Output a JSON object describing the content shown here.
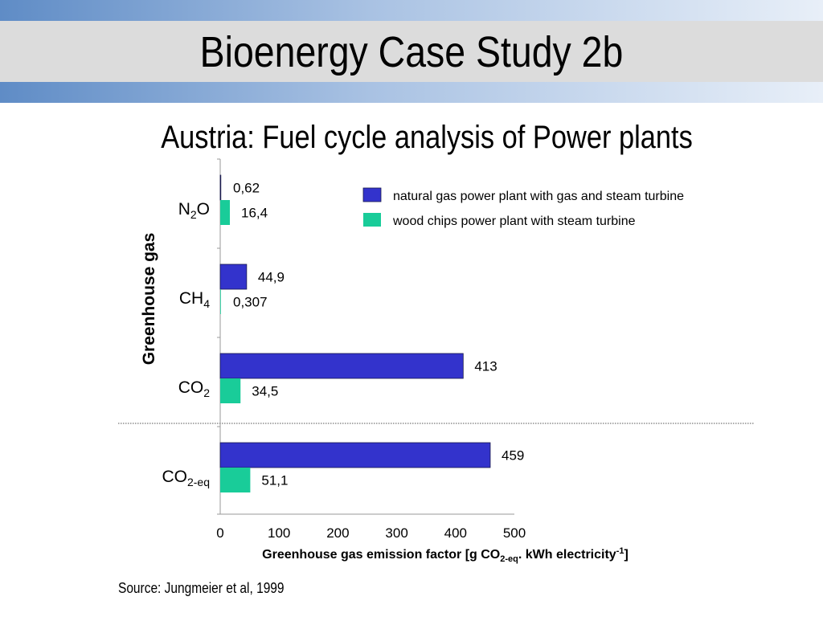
{
  "slide": {
    "title": "Bioenergy Case Study 2b",
    "subtitle": "Austria: Fuel cycle analysis of Power plants",
    "source": "Source: Jungmeier et al, 1999"
  },
  "chart_data": {
    "type": "bar",
    "orientation": "horizontal",
    "categories": [
      {
        "base": "N",
        "sub": "2",
        "tail": "O",
        "sub2": ""
      },
      {
        "base": "CH",
        "sub": "4",
        "tail": "",
        "sub2": ""
      },
      {
        "base": "CO",
        "sub": "2",
        "tail": "",
        "sub2": ""
      },
      {
        "base": "CO",
        "sub": "2-eq",
        "tail": "",
        "sub2": ""
      }
    ],
    "series": [
      {
        "name": "natural gas power plant with gas and steam turbine",
        "color": "#3333cc",
        "values": [
          0.62,
          44.9,
          413,
          459
        ],
        "labels": [
          "0,62",
          "44,9",
          "413",
          "459"
        ]
      },
      {
        "name": "wood chips power plant with steam turbine",
        "color": "#19cc99",
        "values": [
          16.4,
          0.307,
          34.5,
          51.1
        ],
        "labels": [
          "16,4",
          "0,307",
          "34,5",
          "51,1"
        ]
      }
    ],
    "xlim": [
      0,
      500
    ],
    "xticks": [
      "0",
      "100",
      "200",
      "300",
      "400",
      "500"
    ],
    "ylabel": "Greenhouse gas",
    "xlabel": {
      "part1": "Greenhouse gas emission factor [g CO",
      "sub1": "2-eq",
      "part2": ". kWh electricity",
      "sup": "-1",
      "part3": "]"
    },
    "legend_position": "top-right",
    "separator": "dotted line between CO2 and CO2-eq"
  }
}
